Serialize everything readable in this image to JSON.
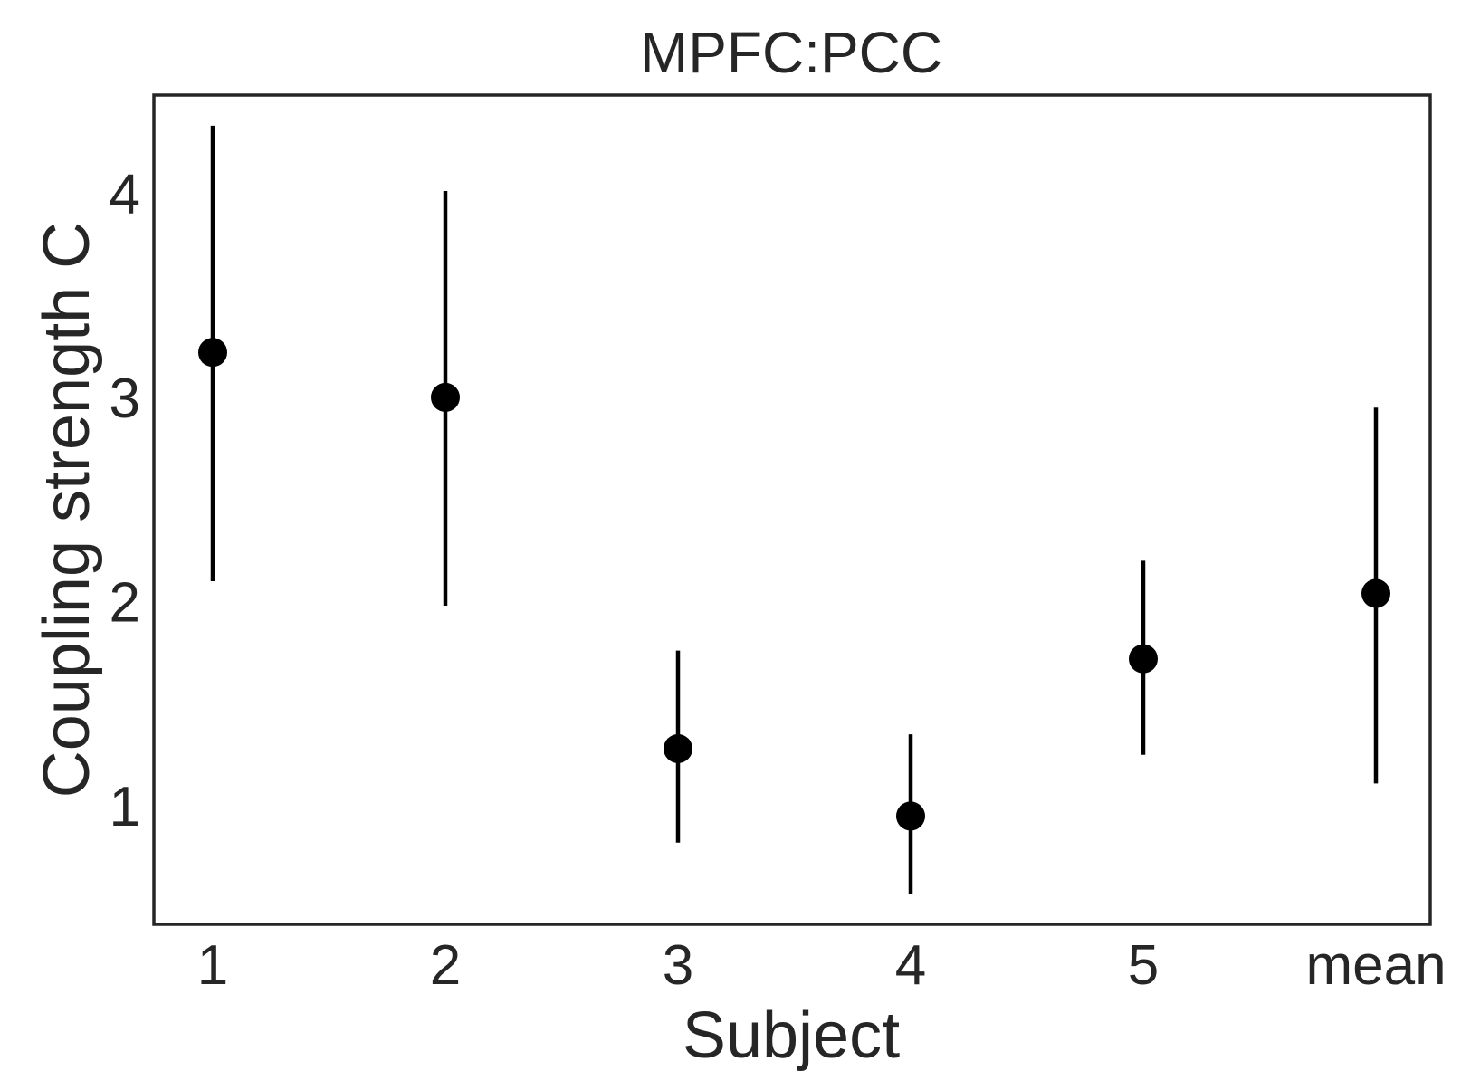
{
  "chart_data": {
    "type": "scatter",
    "title": "MPFC:PCC",
    "xlabel": "Subject",
    "ylabel": "Coupling strength C",
    "categories": [
      "1",
      "2",
      "3",
      "4",
      "5",
      "mean"
    ],
    "yticks": [
      "1",
      "2",
      "3",
      "4"
    ],
    "ylim": [
      0.42,
      4.48
    ],
    "grid": false,
    "series": [
      {
        "values": [
          3.22,
          3.0,
          1.28,
          0.95,
          1.72,
          2.04
        ],
        "error_low": [
          2.1,
          1.98,
          0.82,
          0.57,
          1.25,
          1.11
        ],
        "error_high": [
          4.33,
          4.01,
          1.76,
          1.35,
          2.2,
          2.95
        ],
        "color": "#000000"
      }
    ]
  }
}
